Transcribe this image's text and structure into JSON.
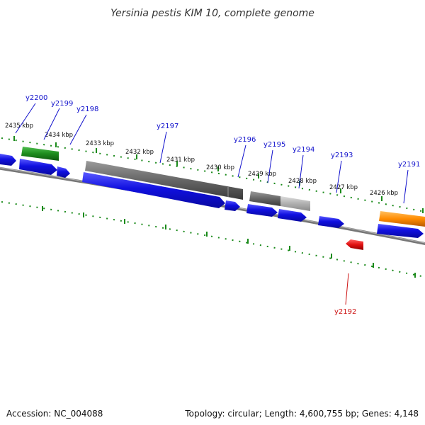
{
  "title": "Yersinia pestis KIM 10, complete genome",
  "footer": {
    "accession": "Accession: NC_004088",
    "summary": "Topology: circular; Length: 4,600,755 bp; Genes: 4,148"
  },
  "scale_labels": [
    "2435 kbp",
    "2434 kbp",
    "2433 kbp",
    "2432 kbp",
    "2431 kbp",
    "2430 kbp",
    "2429 kbp",
    "2428 kbp",
    "2427 kbp",
    "2426 kbp"
  ],
  "gene_labels": [
    "y2200",
    "y2199",
    "y2198",
    "y2197",
    "y2196",
    "y2195",
    "y2194",
    "y2193",
    "y2191",
    "y2192"
  ],
  "colors": {
    "cds": "#1010e0",
    "rna_green": "#1e8c1e",
    "highlight_red": "#e01010",
    "orange": "#ff8c00",
    "gray": "#666666",
    "light_gray": "#b0b0b0",
    "backbone": "#777777",
    "tick": "#1a8a1a",
    "label_line": "#1010cc"
  }
}
